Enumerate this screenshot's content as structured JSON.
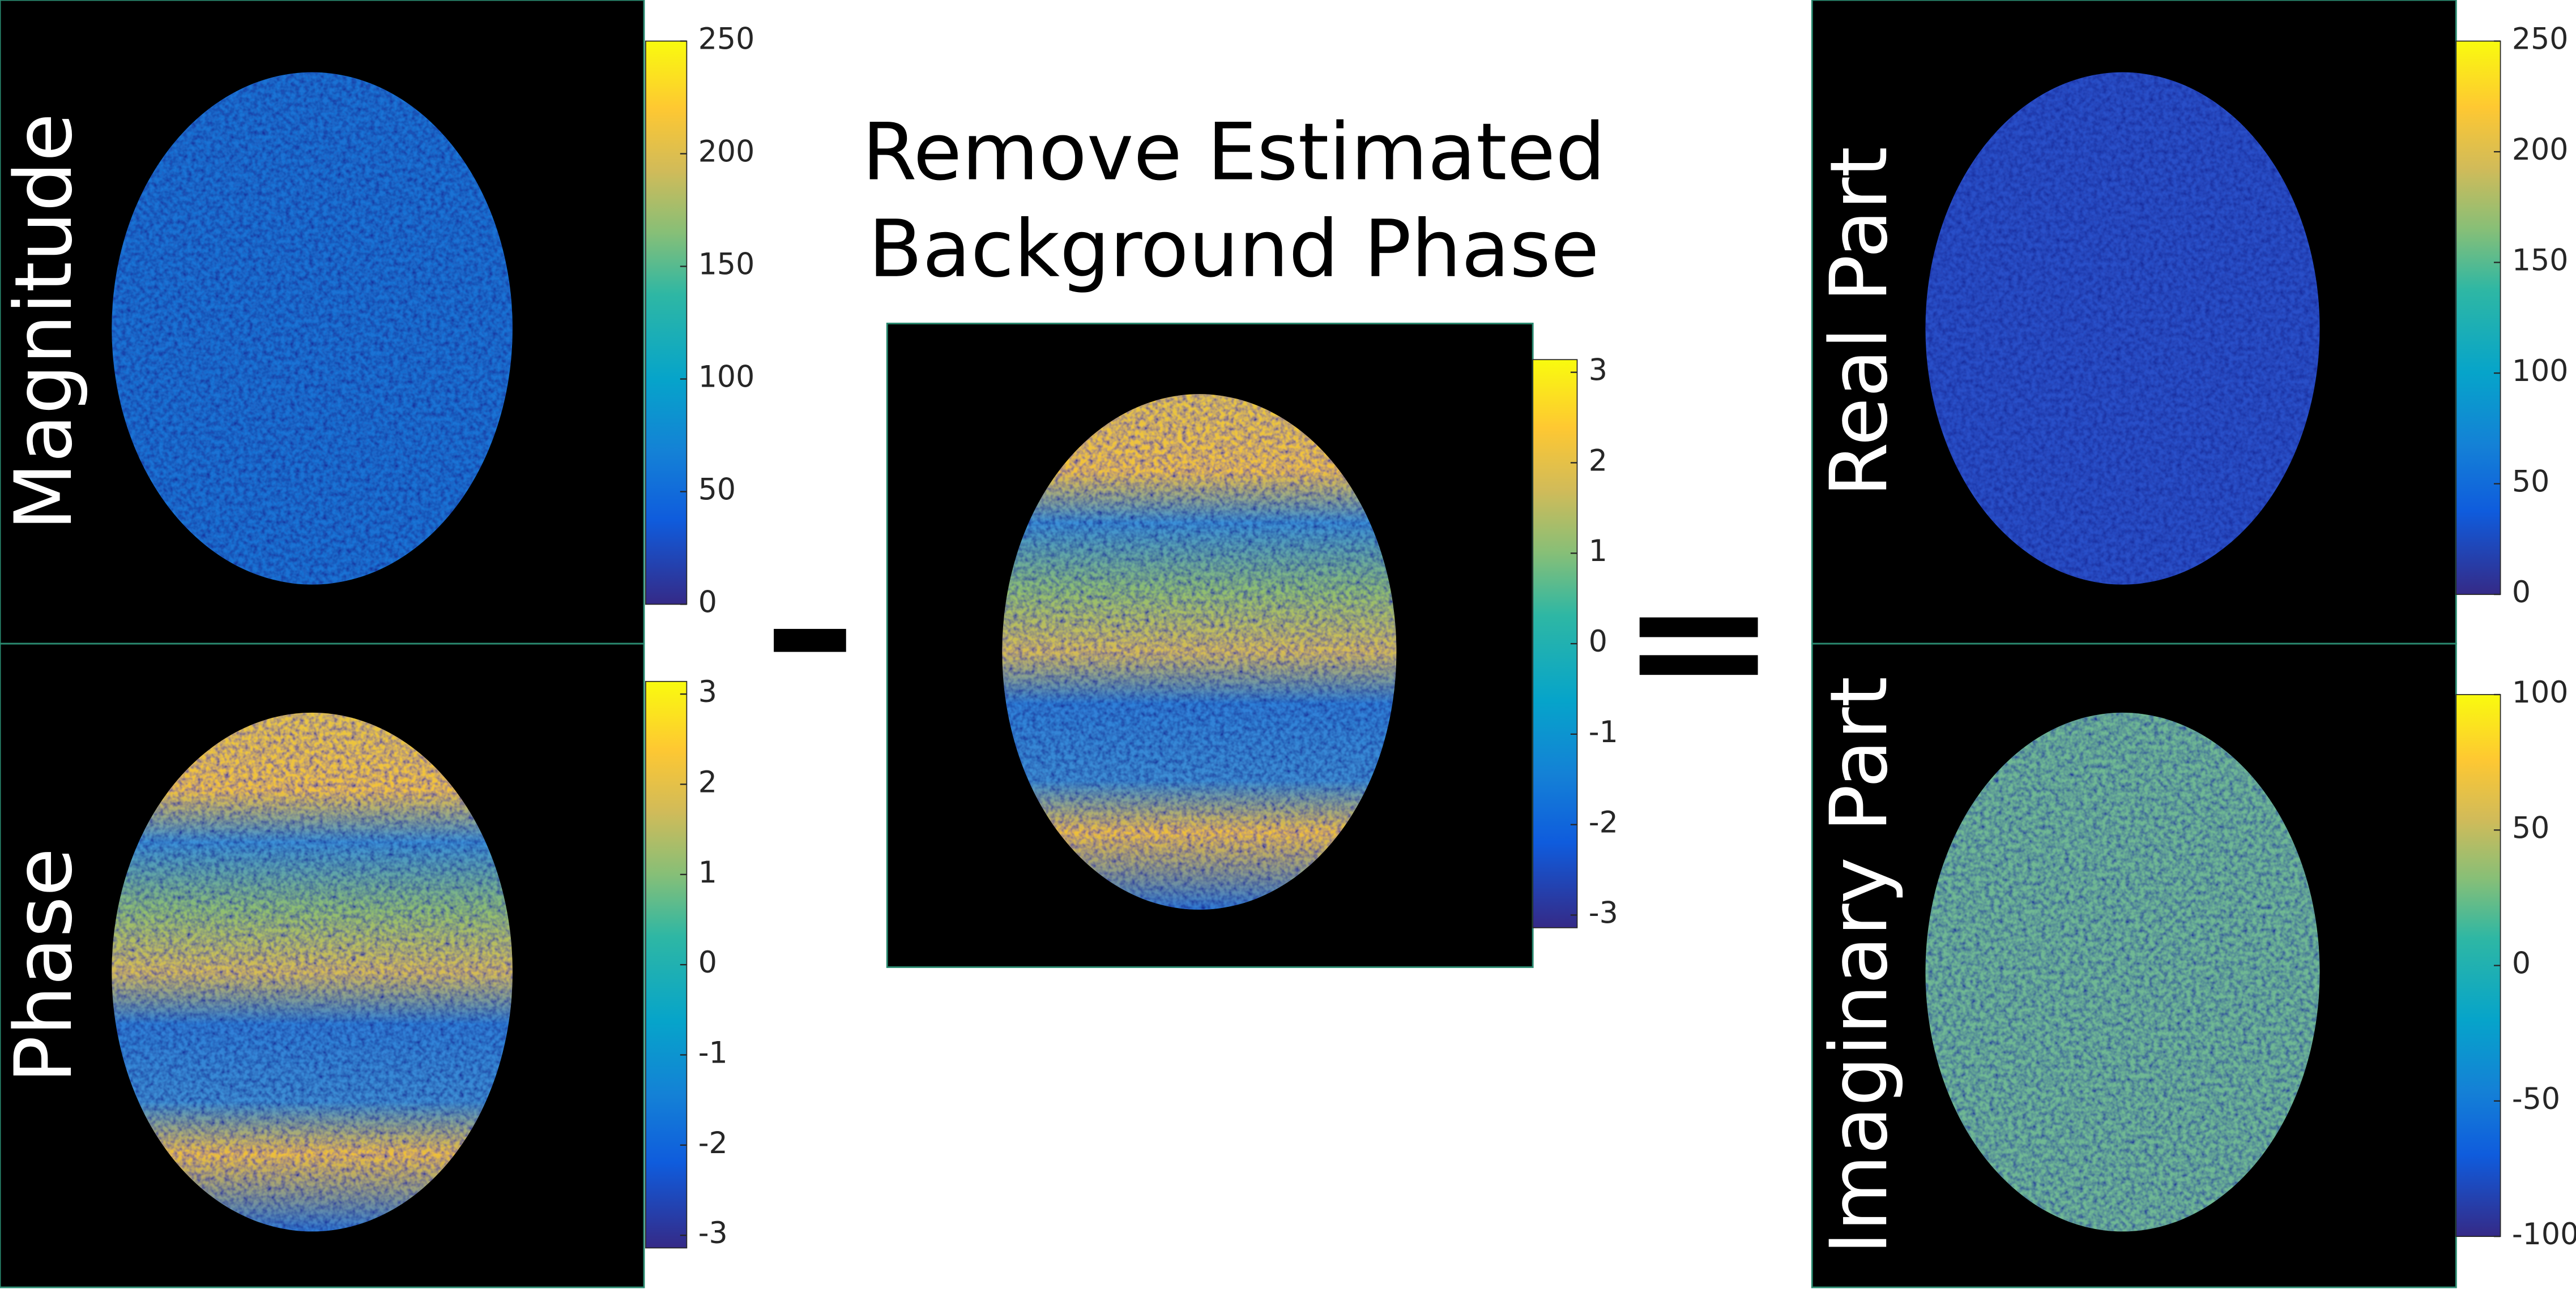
{
  "title_lines": [
    "Remove Estimated",
    "Background Phase"
  ],
  "panels": [
    {
      "label": "Magnitude",
      "clim": [
        0,
        250
      ],
      "ticks": [
        0,
        50,
        100,
        150,
        200,
        250
      ]
    },
    {
      "label": "Phase",
      "clim": [
        -3.14,
        3.14
      ],
      "ticks": [
        -3,
        -2,
        -1,
        0,
        1,
        2,
        3
      ]
    },
    {
      "clim": [
        -3.14,
        3.14
      ],
      "ticks": [
        -3,
        -2,
        -1,
        0,
        1,
        2,
        3
      ]
    },
    {
      "label": "Real Part",
      "clim": [
        0,
        250
      ],
      "ticks": [
        0,
        50,
        100,
        150,
        200,
        250
      ]
    },
    {
      "label": "Imaginary Part",
      "clim": [
        -100,
        100
      ],
      "ticks": [
        -100,
        -50,
        0,
        50,
        100
      ]
    }
  ]
}
